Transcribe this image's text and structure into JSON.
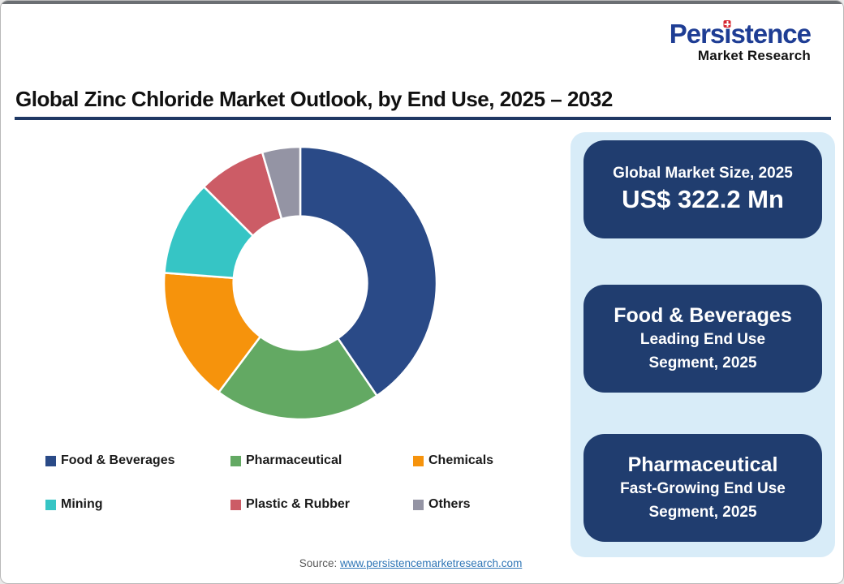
{
  "logo": {
    "name": "Persistence",
    "name_pre": "Pers",
    "name_i": "ı",
    "name_post": "stence",
    "subtitle": "Market Research",
    "brand_color": "#1e3d94",
    "dot_color": "#d6252e"
  },
  "header": {
    "title": "Global Zinc Chloride Market Outlook, by End Use, 2025 – 2032",
    "rule_color": "#1f3864"
  },
  "chart_data": {
    "type": "pie",
    "subtype": "donut",
    "title": "Global Zinc Chloride Market Outlook, by End Use, 2025 – 2032",
    "unit": "percent share of market, estimated from arc angles",
    "start_angle_deg": 0,
    "direction": "clockwise",
    "inner_radius_ratio": 0.49,
    "categories": [
      "Food & Beverages",
      "Pharmaceutical",
      "Chemicals",
      "Mining",
      "Plastic & Rubber",
      "Others"
    ],
    "values": [
      40.5,
      19.7,
      16.0,
      11.3,
      8.0,
      4.5
    ],
    "colors": [
      "#2a4a87",
      "#63a963",
      "#f6930c",
      "#36c5c5",
      "#cc5c66",
      "#9494a4"
    ],
    "legend_position": "bottom-left",
    "labels_shown": false
  },
  "panel": {
    "background": "#d8ecf8",
    "card_background": "#203d6f"
  },
  "cards": [
    {
      "title": "Global Market Size, 2025",
      "value": "US$ 322.2 Mn"
    },
    {
      "title": "Food & Beverages",
      "subtitle_line1": "Leading End Use",
      "subtitle_line2": "Segment, 2025"
    },
    {
      "title": "Pharmaceutical",
      "subtitle_line1": "Fast-Growing End Use",
      "subtitle_line2": "Segment, 2025"
    }
  ],
  "source": {
    "label": "Source:",
    "link_text": "www.persistencemarketresearch.com",
    "link_color": "#2e75b6"
  }
}
